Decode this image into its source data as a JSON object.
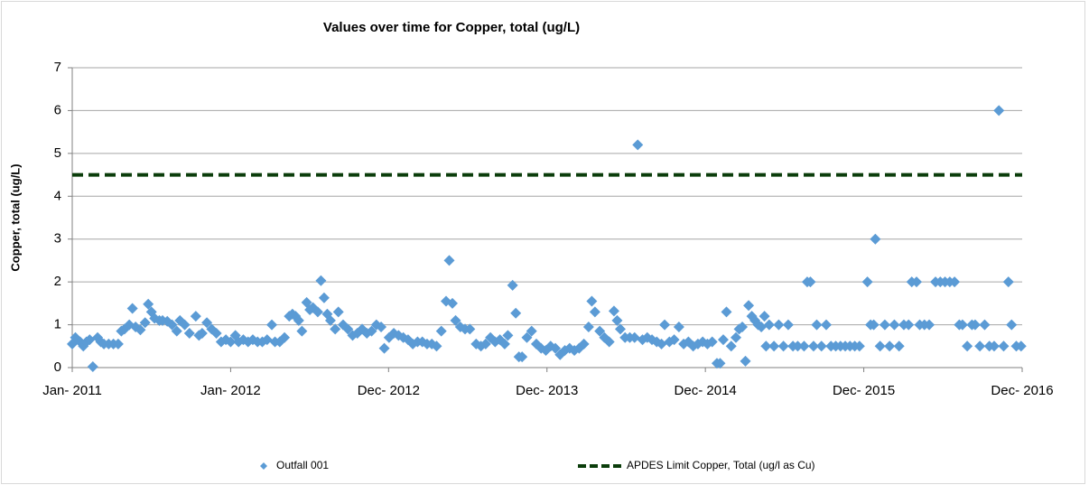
{
  "chart_data": {
    "type": "scatter",
    "title": "Values over time for Copper, total (ug/L)",
    "y_label": "Copper, total (ug/L)",
    "xlim": [
      2011,
      2016.997
    ],
    "xticks": [
      {
        "value": 2011,
        "label": "Jan- 2011"
      },
      {
        "value": 2012,
        "label": "Jan- 2012"
      },
      {
        "value": 2012.997,
        "label": "Dec- 2012"
      },
      {
        "value": 2013.997,
        "label": "Dec- 2013"
      },
      {
        "value": 2014.997,
        "label": "Dec- 2014"
      },
      {
        "value": 2015.997,
        "label": "Dec- 2015"
      },
      {
        "value": 2016.997,
        "label": "Dec- 2016"
      }
    ],
    "ylim": [
      0,
      7
    ],
    "yticks": [
      0,
      1,
      2,
      3,
      4,
      5,
      6,
      7
    ],
    "grid": true,
    "legend": "bottom",
    "series": [
      {
        "name": "Outfall 001",
        "color": "#5b9bd5",
        "marker": "diamond",
        "x": [
          2011.0,
          2011.02,
          2011.05,
          2011.07,
          2011.09,
          2011.11,
          2011.13,
          2011.16,
          2011.18,
          2011.2,
          2011.23,
          2011.26,
          2011.29,
          2011.31,
          2011.33,
          2011.36,
          2011.38,
          2011.4,
          2011.43,
          2011.46,
          2011.48,
          2011.5,
          2011.52,
          2011.55,
          2011.57,
          2011.6,
          2011.63,
          2011.66,
          2011.68,
          2011.71,
          2011.74,
          2011.78,
          2011.8,
          2011.82,
          2011.85,
          2011.88,
          2011.91,
          2011.94,
          2011.97,
          2012.0,
          2012.03,
          2012.05,
          2012.08,
          2012.11,
          2012.14,
          2012.17,
          2012.2,
          2012.23,
          2012.26,
          2012.28,
          2012.31,
          2012.34,
          2012.37,
          2012.39,
          2012.41,
          2012.43,
          2012.45,
          2012.48,
          2012.5,
          2012.52,
          2012.55,
          2012.57,
          2012.59,
          2012.61,
          2012.63,
          2012.66,
          2012.68,
          2012.71,
          2012.74,
          2012.77,
          2012.8,
          2012.83,
          2012.86,
          2012.89,
          2012.92,
          2012.95,
          2012.97,
          2013.0,
          2013.03,
          2013.06,
          2013.09,
          2013.12,
          2013.15,
          2013.18,
          2013.21,
          2013.24,
          2013.27,
          2013.3,
          2013.33,
          2013.36,
          2013.38,
          2013.4,
          2013.42,
          2013.45,
          2013.48,
          2013.51,
          2013.55,
          2013.58,
          2013.61,
          2013.64,
          2013.67,
          2013.7,
          2013.73,
          2013.75,
          2013.78,
          2013.8,
          2013.82,
          2013.84,
          2013.87,
          2013.9,
          2013.93,
          2013.96,
          2013.99,
          2014.02,
          2014.05,
          2014.08,
          2014.11,
          2014.14,
          2014.17,
          2014.2,
          2014.23,
          2014.26,
          2014.28,
          2014.3,
          2014.33,
          2014.36,
          2014.39,
          2014.42,
          2014.44,
          2014.46,
          2014.49,
          2014.52,
          2014.55,
          2014.57,
          2014.6,
          2014.63,
          2014.66,
          2014.69,
          2014.72,
          2014.74,
          2014.77,
          2014.8,
          2014.83,
          2014.86,
          2014.89,
          2014.92,
          2014.95,
          2014.98,
          2015.01,
          2015.04,
          2015.07,
          2015.09,
          2015.11,
          2015.13,
          2015.16,
          2015.19,
          2015.21,
          2015.23,
          2015.25,
          2015.27,
          2015.29,
          2015.31,
          2015.33,
          2015.35,
          2015.37,
          2015.38,
          2015.4,
          2015.43,
          2015.46,
          2015.49,
          2015.52,
          2015.55,
          2015.58,
          2015.62,
          2015.64,
          2015.66,
          2015.68,
          2015.7,
          2015.73,
          2015.76,
          2015.79,
          2015.82,
          2015.85,
          2015.88,
          2015.91,
          2015.94,
          2015.97,
          2016.02,
          2016.04,
          2016.06,
          2016.07,
          2016.1,
          2016.13,
          2016.16,
          2016.19,
          2016.22,
          2016.25,
          2016.28,
          2016.3,
          2016.33,
          2016.35,
          2016.38,
          2016.41,
          2016.45,
          2016.48,
          2016.51,
          2016.54,
          2016.57,
          2016.6,
          2016.62,
          2016.65,
          2016.68,
          2016.7,
          2016.73,
          2016.76,
          2016.79,
          2016.82,
          2016.85,
          2016.88,
          2016.91,
          2016.93,
          2016.96,
          2016.99
        ],
        "values": [
          0.55,
          0.7,
          0.6,
          0.5,
          0.6,
          0.65,
          0.02,
          0.7,
          0.6,
          0.55,
          0.55,
          0.55,
          0.55,
          0.85,
          0.9,
          1.0,
          1.38,
          0.95,
          0.88,
          1.05,
          1.48,
          1.3,
          1.15,
          1.1,
          1.1,
          1.08,
          1.0,
          0.85,
          1.1,
          1.0,
          0.8,
          1.2,
          0.75,
          0.8,
          1.05,
          0.9,
          0.8,
          0.6,
          0.65,
          0.6,
          0.75,
          0.6,
          0.65,
          0.6,
          0.65,
          0.6,
          0.6,
          0.65,
          1.0,
          0.6,
          0.6,
          0.7,
          1.2,
          1.25,
          1.2,
          1.1,
          0.85,
          1.52,
          1.35,
          1.4,
          1.3,
          2.03,
          1.63,
          1.25,
          1.1,
          0.9,
          1.3,
          1.0,
          0.9,
          0.75,
          0.8,
          0.9,
          0.8,
          0.85,
          1.0,
          0.95,
          0.45,
          0.7,
          0.8,
          0.75,
          0.7,
          0.65,
          0.55,
          0.6,
          0.6,
          0.55,
          0.55,
          0.5,
          0.85,
          1.55,
          2.5,
          1.5,
          1.1,
          0.95,
          0.9,
          0.9,
          0.55,
          0.5,
          0.55,
          0.7,
          0.6,
          0.65,
          0.55,
          0.75,
          1.92,
          1.27,
          0.25,
          0.25,
          0.7,
          0.85,
          0.55,
          0.45,
          0.4,
          0.5,
          0.45,
          0.3,
          0.4,
          0.45,
          0.4,
          0.45,
          0.55,
          0.95,
          1.55,
          1.3,
          0.85,
          0.7,
          0.6,
          1.32,
          1.1,
          0.9,
          0.7,
          0.7,
          0.7,
          5.2,
          0.65,
          0.7,
          0.65,
          0.6,
          0.55,
          1.0,
          0.6,
          0.65,
          0.95,
          0.55,
          0.6,
          0.5,
          0.55,
          0.6,
          0.55,
          0.6,
          0.1,
          0.1,
          0.65,
          1.3,
          0.5,
          0.7,
          0.9,
          0.95,
          0.15,
          1.45,
          1.2,
          1.1,
          1.0,
          0.95,
          1.2,
          0.5,
          1.0,
          0.5,
          1.0,
          0.5,
          1.0,
          0.5,
          0.5,
          0.5,
          2.0,
          2.0,
          0.5,
          1.0,
          0.5,
          1.0,
          0.5,
          0.5,
          0.5,
          0.5,
          0.5,
          0.5,
          0.5,
          2.0,
          1.0,
          1.0,
          3.0,
          0.5,
          1.0,
          0.5,
          1.0,
          0.5,
          1.0,
          1.0,
          2.0,
          2.0,
          1.0,
          1.0,
          1.0,
          2.0,
          2.0,
          2.0,
          2.0,
          2.0,
          1.0,
          1.0,
          0.5,
          1.0,
          1.0,
          0.5,
          1.0,
          0.5,
          0.5,
          6.0,
          0.5,
          2.0,
          1.0,
          0.5,
          0.5
        ]
      },
      {
        "name": "APDES Limit Copper, Total (ug/l as Cu)",
        "color": "#0b3d0b",
        "marker": "dashed-line",
        "x": [
          2011,
          2016.997
        ],
        "values": [
          4.5,
          4.5
        ]
      }
    ]
  }
}
